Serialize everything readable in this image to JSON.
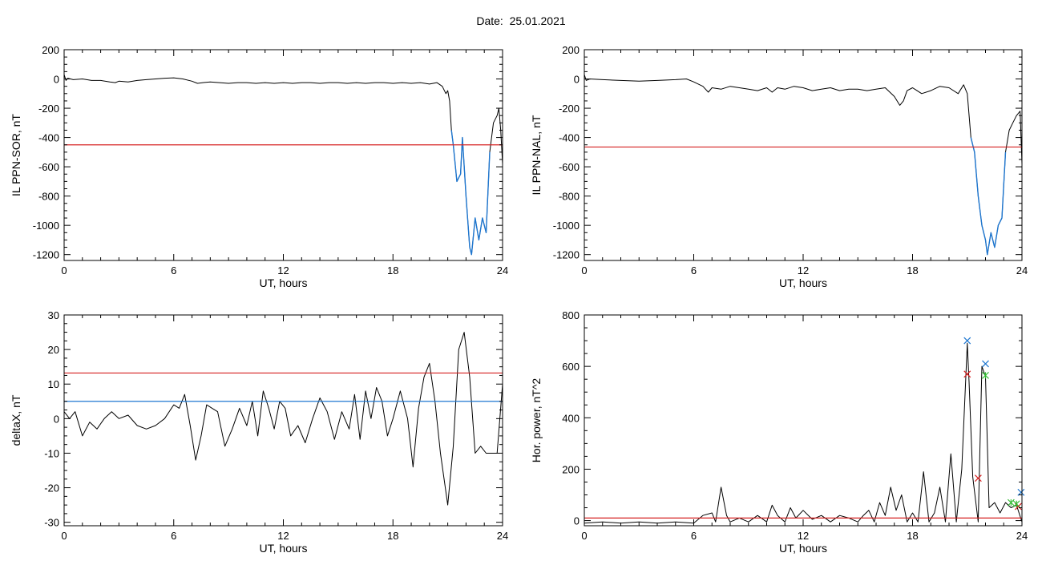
{
  "header": {
    "date_label": "Date:",
    "date_value": "25.01.2021"
  },
  "colors": {
    "axis": "#000000",
    "data": "#000000",
    "red": "#d62020",
    "blue": "#1f77d0",
    "green": "#33bb33"
  },
  "chart_data": [
    {
      "id": "sor",
      "type": "line",
      "title": "",
      "xlabel": "UT, hours",
      "ylabel": "IL PPN-SOR, nT",
      "xlim": [
        0,
        24
      ],
      "ylim": [
        -1240,
        200
      ],
      "xticks": [
        0,
        6,
        12,
        18,
        24
      ],
      "yticks": [
        200,
        0,
        -200,
        -400,
        -600,
        -800,
        -1000,
        -1200
      ],
      "hlines": [
        {
          "y": -450,
          "color": "red"
        }
      ],
      "series": [
        {
          "x": [
            0,
            0.1,
            0.2,
            0.5,
            1,
            1.5,
            2,
            2.5,
            2.8,
            3,
            3.5,
            4,
            4.5,
            5,
            5.5,
            6,
            6.5,
            7,
            7.3,
            7.6,
            8,
            8.5,
            9,
            9.5,
            10,
            10.5,
            11,
            11.5,
            12,
            12.5,
            13,
            13.5,
            14,
            14.5,
            15,
            15.5,
            16,
            16.5,
            17,
            17.5,
            18,
            18.5,
            19,
            19.5,
            20,
            20.4,
            20.7,
            20.9,
            21,
            21.1,
            21.2,
            21.3,
            21.5,
            21.7,
            21.8,
            22,
            22.2,
            22.3,
            22.5,
            22.7,
            22.9,
            23.1,
            23.3,
            23.5,
            23.7,
            23.8,
            23.9,
            24
          ],
          "y": [
            30,
            -10,
            5,
            -5,
            0,
            -10,
            -10,
            -20,
            -25,
            -15,
            -20,
            -10,
            -5,
            0,
            5,
            8,
            0,
            -15,
            -30,
            -25,
            -20,
            -25,
            -30,
            -25,
            -25,
            -30,
            -25,
            -30,
            -25,
            -30,
            -25,
            -25,
            -30,
            -25,
            -25,
            -30,
            -25,
            -30,
            -25,
            -25,
            -30,
            -25,
            -30,
            -25,
            -35,
            -25,
            -50,
            -100,
            -80,
            -150,
            -350,
            -450,
            -700,
            -650,
            -400,
            -800,
            -1150,
            -1200,
            -950,
            -1100,
            -950,
            -1050,
            -500,
            -300,
            -250,
            -200,
            -350,
            -580
          ],
          "color": "data"
        },
        {
          "x": [
            21.2,
            21.3,
            21.5,
            21.7,
            21.8,
            22,
            22.2,
            22.3,
            22.5,
            22.7,
            22.9,
            23.1,
            23.3
          ],
          "y": [
            -350,
            -450,
            -700,
            -650,
            -400,
            -800,
            -1150,
            -1200,
            -950,
            -1100,
            -950,
            -1050,
            -500
          ],
          "color": "blue"
        }
      ]
    },
    {
      "id": "nal",
      "type": "line",
      "title": "",
      "xlabel": "UT, hours",
      "ylabel": "IL PPN-NAL, nT",
      "xlim": [
        0,
        24
      ],
      "ylim": [
        -1240,
        200
      ],
      "xticks": [
        0,
        6,
        12,
        18,
        24
      ],
      "yticks": [
        200,
        0,
        -200,
        -400,
        -600,
        -800,
        -1000,
        -1200
      ],
      "hlines": [
        {
          "y": -465,
          "color": "red"
        }
      ],
      "series": [
        {
          "x": [
            0,
            0.1,
            0.3,
            1,
            2,
            3,
            4,
            5,
            5.6,
            6,
            6.5,
            6.8,
            7,
            7.5,
            8,
            8.5,
            9,
            9.5,
            10,
            10.3,
            10.6,
            11,
            11.5,
            12,
            12.5,
            13,
            13.5,
            14,
            14.5,
            15,
            15.5,
            16,
            16.5,
            17,
            17.3,
            17.5,
            17.7,
            18,
            18.5,
            19,
            19.5,
            20,
            20.5,
            20.8,
            21,
            21.2,
            21.4,
            21.6,
            21.8,
            22,
            22.1,
            22.3,
            22.5,
            22.7,
            22.9,
            23.1,
            23.3,
            23.5,
            23.7,
            23.9,
            24
          ],
          "y": [
            30,
            -10,
            0,
            -5,
            -10,
            -15,
            -10,
            -5,
            0,
            -20,
            -50,
            -90,
            -60,
            -70,
            -50,
            -60,
            -70,
            -80,
            -60,
            -90,
            -60,
            -70,
            -50,
            -60,
            -80,
            -70,
            -60,
            -80,
            -70,
            -70,
            -80,
            -70,
            -60,
            -120,
            -180,
            -150,
            -80,
            -60,
            -100,
            -80,
            -50,
            -60,
            -100,
            -40,
            -100,
            -400,
            -500,
            -800,
            -1000,
            -1100,
            -1200,
            -1050,
            -1150,
            -1000,
            -950,
            -500,
            -350,
            -300,
            -250,
            -220,
            -580
          ],
          "color": "data"
        },
        {
          "x": [
            21.2,
            21.4,
            21.6,
            21.8,
            22,
            22.1,
            22.3,
            22.5,
            22.7,
            22.9,
            23.1
          ],
          "y": [
            -400,
            -500,
            -800,
            -1000,
            -1100,
            -1200,
            -1050,
            -1150,
            -1000,
            -950,
            -500
          ],
          "color": "blue"
        }
      ]
    },
    {
      "id": "deltax",
      "type": "line",
      "title": "",
      "xlabel": "UT, hours",
      "ylabel": "deltaX, nT",
      "xlim": [
        0,
        24
      ],
      "ylim": [
        -31,
        30
      ],
      "xticks": [
        0,
        6,
        12,
        18,
        24
      ],
      "yticks": [
        30,
        20,
        10,
        0,
        -10,
        -20,
        -30
      ],
      "hlines": [
        {
          "y": 13.2,
          "color": "red"
        },
        {
          "y": 5,
          "color": "blue"
        }
      ],
      "series": [
        {
          "x": [
            0,
            0.3,
            0.6,
            1,
            1.4,
            1.8,
            2.2,
            2.6,
            3,
            3.5,
            4,
            4.5,
            5,
            5.5,
            6,
            6.3,
            6.6,
            6.9,
            7.2,
            7.5,
            7.8,
            8.1,
            8.4,
            8.8,
            9.2,
            9.6,
            10,
            10.3,
            10.6,
            10.9,
            11.2,
            11.5,
            11.8,
            12.1,
            12.4,
            12.8,
            13.2,
            13.6,
            14,
            14.4,
            14.8,
            15.2,
            15.6,
            15.9,
            16.2,
            16.5,
            16.8,
            17.1,
            17.4,
            17.7,
            18,
            18.4,
            18.8,
            19.1,
            19.4,
            19.7,
            20,
            20.3,
            20.6,
            21,
            21.3,
            21.6,
            21.9,
            22.2,
            22.5,
            22.8,
            23.1,
            23.4,
            23.7,
            24
          ],
          "y": [
            2,
            0,
            2,
            -5,
            -1,
            -3,
            0,
            2,
            0,
            1,
            -2,
            -3,
            -2,
            0,
            4,
            3,
            7,
            -2,
            -12,
            -5,
            4,
            3,
            2,
            -8,
            -3,
            3,
            -2,
            5,
            -5,
            8,
            3,
            -3,
            5,
            3,
            -5,
            -2,
            -7,
            0,
            6,
            2,
            -6,
            2,
            -3,
            7,
            -6,
            8,
            0,
            9,
            5,
            -5,
            0,
            8,
            0,
            -14,
            3,
            12,
            16,
            5,
            -10,
            -25,
            -8,
            20,
            25,
            12,
            -10,
            -8,
            -10,
            -10,
            -10,
            10
          ],
          "color": "data"
        }
      ]
    },
    {
      "id": "power",
      "type": "line",
      "title": "",
      "xlabel": "UT, hours",
      "ylabel": "Hor. power, nT^2",
      "xlim": [
        0,
        24
      ],
      "ylim": [
        -20,
        800
      ],
      "xticks": [
        0,
        6,
        12,
        18,
        24
      ],
      "yticks": [
        800,
        600,
        400,
        200,
        0
      ],
      "hlines": [
        {
          "y": 10,
          "color": "red"
        }
      ],
      "series": [
        {
          "x": [
            0,
            1,
            2,
            3,
            4,
            5,
            6,
            6.5,
            7,
            7.2,
            7.5,
            7.8,
            8,
            8.5,
            9,
            9.5,
            10,
            10.3,
            10.6,
            11,
            11.3,
            11.6,
            12,
            12.5,
            13,
            13.5,
            14,
            14.5,
            15,
            15.3,
            15.6,
            15.9,
            16.2,
            16.5,
            16.8,
            17.1,
            17.4,
            17.7,
            18,
            18.3,
            18.6,
            18.9,
            19.2,
            19.5,
            19.8,
            20.1,
            20.4,
            20.7,
            21,
            21.1,
            21.3,
            21.6,
            21.8,
            22,
            22.2,
            22.5,
            22.8,
            23.1,
            23.4,
            23.7,
            24
          ],
          "y": [
            -10,
            -5,
            -10,
            -5,
            -10,
            -5,
            -10,
            20,
            30,
            -5,
            130,
            20,
            -5,
            10,
            -5,
            20,
            -5,
            60,
            20,
            -5,
            50,
            10,
            40,
            5,
            20,
            -5,
            20,
            10,
            -5,
            20,
            40,
            -5,
            70,
            20,
            130,
            40,
            100,
            -5,
            30,
            -5,
            190,
            -5,
            30,
            130,
            -5,
            260,
            -5,
            200,
            690,
            540,
            170,
            -5,
            600,
            560,
            50,
            70,
            30,
            70,
            50,
            60,
            -5
          ],
          "color": "data"
        }
      ],
      "markers": [
        {
          "x": 21.0,
          "y": 700,
          "color": "blue"
        },
        {
          "x": 22.0,
          "y": 610,
          "color": "blue"
        },
        {
          "x": 23.95,
          "y": 110,
          "color": "blue"
        },
        {
          "x": 21.0,
          "y": 570,
          "color": "red"
        },
        {
          "x": 21.6,
          "y": 165,
          "color": "red"
        },
        {
          "x": 23.8,
          "y": 55,
          "color": "red"
        },
        {
          "x": 22.0,
          "y": 565,
          "color": "green"
        },
        {
          "x": 23.4,
          "y": 70,
          "color": "green"
        },
        {
          "x": 23.7,
          "y": 65,
          "color": "green"
        }
      ]
    }
  ]
}
